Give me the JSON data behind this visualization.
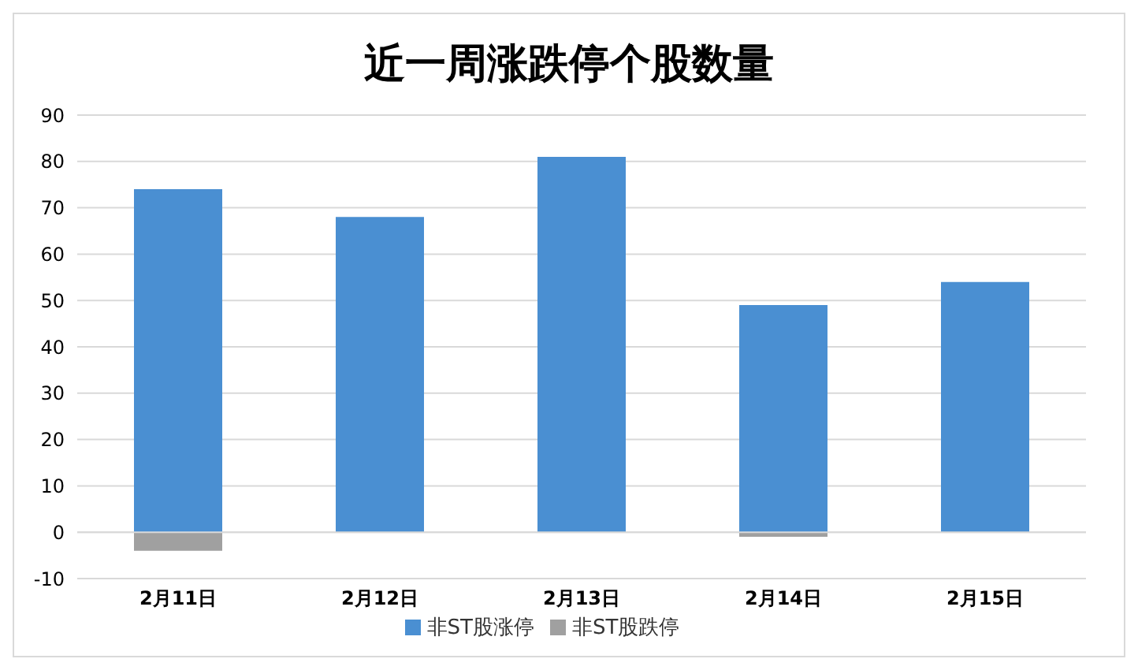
{
  "chart_data": {
    "type": "bar",
    "title": "近一周涨跌停个股数量",
    "categories": [
      "2月11日",
      "2月12日",
      "2月13日",
      "2月14日",
      "2月15日"
    ],
    "series": [
      {
        "name": "非ST股涨停",
        "color": "#4a8fd2",
        "values": [
          74,
          68,
          81,
          49,
          54
        ]
      },
      {
        "name": "非ST股跌停",
        "color": "#a0a0a0",
        "values": [
          -4,
          0,
          0,
          -1,
          0
        ]
      }
    ],
    "stacked": true,
    "ylim": [
      -10,
      90
    ],
    "yticks": [
      -10,
      0,
      10,
      20,
      30,
      40,
      50,
      60,
      70,
      80,
      90
    ],
    "grid": "y",
    "legend": "bottom"
  }
}
